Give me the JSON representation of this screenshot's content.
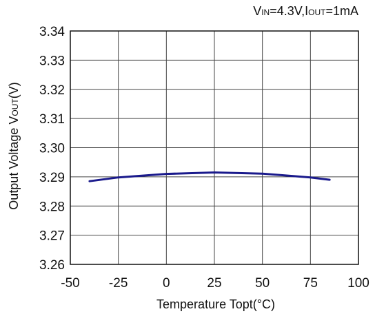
{
  "chart_data": {
    "type": "line",
    "title": "",
    "condition": {
      "vin_prefix": "V",
      "vin_sub": "IN",
      "vin_value": "=4.3V",
      "separator": ",",
      "iout_prefix": "I",
      "iout_sub": "OUT",
      "iout_value": "=1mA"
    },
    "xlabel": "Temperature Topt(°C)",
    "ylabel": {
      "main": "Output Voltage V",
      "sub": "OUT",
      "unit": "(V)"
    },
    "xlim": [
      -50,
      100
    ],
    "ylim": [
      3.26,
      3.34
    ],
    "x_ticks": [
      -50,
      -25,
      0,
      25,
      50,
      75,
      100
    ],
    "x_tick_labels": [
      "-50",
      "-25",
      "0",
      "25",
      "50",
      "75",
      "100"
    ],
    "y_ticks": [
      3.26,
      3.27,
      3.28,
      3.29,
      3.3,
      3.31,
      3.32,
      3.33,
      3.34
    ],
    "y_tick_labels": [
      "3.26",
      "3.27",
      "3.28",
      "3.29",
      "3.30",
      "3.31",
      "3.32",
      "3.33",
      "3.34"
    ],
    "grid": true,
    "series": [
      {
        "color": "#1a1a8c",
        "x": [
          -40,
          -25,
          0,
          25,
          50,
          75,
          85
        ],
        "y": [
          3.2885,
          3.2898,
          3.291,
          3.2915,
          3.2911,
          3.2898,
          3.289
        ]
      }
    ]
  }
}
